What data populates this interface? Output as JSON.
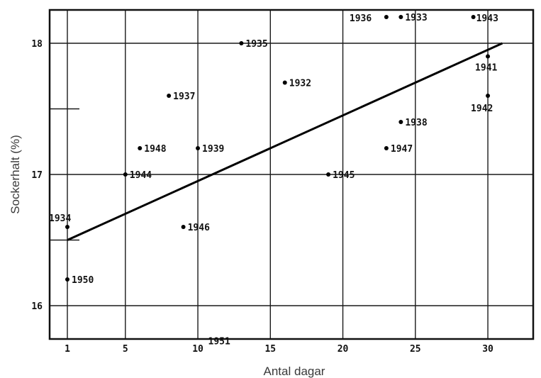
{
  "chart_data": {
    "type": "scatter",
    "xlabel": "Antal dagar",
    "ylabel": "Sockerhalt (%)",
    "xlim": [
      0.2,
      31.6
    ],
    "ylim": [
      15.75,
      18.23
    ],
    "grid": true,
    "x_ticks": [
      1,
      5,
      10,
      15,
      20,
      25,
      30
    ],
    "x_tick_labels": [
      "1",
      "5",
      "10",
      "15",
      "20",
      "25",
      "30"
    ],
    "y_ticks": [
      16,
      17,
      18
    ],
    "y_tick_labels": [
      "16",
      "17",
      "18"
    ],
    "points": [
      {
        "year": "1936",
        "x": 23,
        "y": 18.2
      },
      {
        "year": "1933",
        "x": 24,
        "y": 18.2
      },
      {
        "year": "1943",
        "x": 29,
        "y": 18.2
      },
      {
        "year": "1935",
        "x": 13,
        "y": 18.0
      },
      {
        "year": "1941",
        "x": 30,
        "y": 17.9
      },
      {
        "year": "1932",
        "x": 16,
        "y": 17.7
      },
      {
        "year": "1937",
        "x": 8,
        "y": 17.6
      },
      {
        "year": "1942",
        "x": 30,
        "y": 17.6
      },
      {
        "year": "1938",
        "x": 24,
        "y": 17.4
      },
      {
        "year": "1948",
        "x": 6,
        "y": 17.2
      },
      {
        "year": "1939",
        "x": 10,
        "y": 17.2
      },
      {
        "year": "1947",
        "x": 23,
        "y": 17.2
      },
      {
        "year": "1944",
        "x": 5,
        "y": 17.0
      },
      {
        "year": "1945",
        "x": 19,
        "y": 17.0
      },
      {
        "year": "1934",
        "x": 1,
        "y": 16.6
      },
      {
        "year": "1946",
        "x": 9,
        "y": 16.6
      },
      {
        "year": "1950",
        "x": 1,
        "y": 16.2
      },
      {
        "year": "1951",
        "x": 11,
        "y": 15.75
      }
    ],
    "trend_line": {
      "x": [
        1,
        31
      ],
      "y": [
        16.5,
        18.0
      ]
    }
  }
}
